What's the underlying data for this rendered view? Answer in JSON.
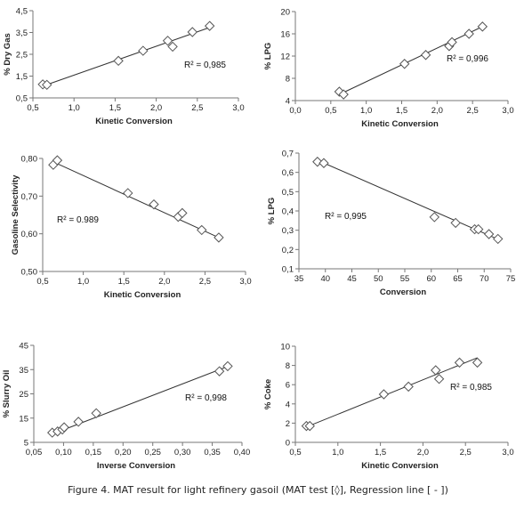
{
  "caption": "Figure 4. MAT result for light refinery gasoil (MAT test [◊], Regression line [ - ])",
  "chart_data": [
    {
      "type": "scatter",
      "xlabel": "Kinetic Conversion",
      "ylabel": "% Dry Gas",
      "xlim": [
        0.5,
        3.0
      ],
      "ylim": [
        0.5,
        4.5
      ],
      "xticks": [
        "0,5",
        "1,0",
        "1,5",
        "2,0",
        "2,5",
        "3,0"
      ],
      "yticks": [
        "0,5",
        "1,5",
        "2,5",
        "3,5",
        "4,5"
      ],
      "points": [
        [
          0.62,
          1.12
        ],
        [
          0.67,
          1.1
        ],
        [
          1.54,
          2.2
        ],
        [
          1.84,
          2.66
        ],
        [
          2.14,
          3.12
        ],
        [
          2.2,
          2.85
        ],
        [
          2.44,
          3.52
        ],
        [
          2.65,
          3.8
        ]
      ],
      "trend": [
        [
          0.62,
          1.04
        ],
        [
          2.65,
          3.73
        ]
      ],
      "r2": "R² = 0,985",
      "grid": false
    },
    {
      "type": "scatter",
      "xlabel": "Kinetic Conversion",
      "ylabel": "% LPG",
      "xlim": [
        0.0,
        3.0
      ],
      "ylim": [
        4,
        20
      ],
      "xticks": [
        "0,0",
        "0,5",
        "1,0",
        "1,5",
        "2,0",
        "2,5",
        "3,0"
      ],
      "yticks": [
        "4",
        "8",
        "12",
        "16",
        "20"
      ],
      "points": [
        [
          0.62,
          5.6
        ],
        [
          0.68,
          5.1
        ],
        [
          1.54,
          10.6
        ],
        [
          1.84,
          12.2
        ],
        [
          2.17,
          13.8
        ],
        [
          2.21,
          14.5
        ],
        [
          2.45,
          16.0
        ],
        [
          2.64,
          17.3
        ]
      ],
      "trend": [
        [
          0.62,
          5.1
        ],
        [
          2.64,
          17.3
        ]
      ],
      "r2": "R² = 0,996",
      "grid": false
    },
    {
      "type": "scatter",
      "xlabel": "Kinetic Conversion",
      "ylabel": "Gasoline Selectivity",
      "xlim": [
        0.5,
        3.0
      ],
      "ylim": [
        0.5,
        0.8
      ],
      "xticks": [
        "0,5",
        "1,0",
        "1,5",
        "2,0",
        "2,5",
        "3,0"
      ],
      "yticks": [
        "0,50",
        "0,60",
        "0,70",
        "0,80"
      ],
      "points": [
        [
          0.63,
          0.783
        ],
        [
          0.68,
          0.795
        ],
        [
          1.55,
          0.708
        ],
        [
          1.87,
          0.678
        ],
        [
          2.17,
          0.645
        ],
        [
          2.22,
          0.655
        ],
        [
          2.46,
          0.61
        ],
        [
          2.67,
          0.59
        ]
      ],
      "trend": [
        [
          0.63,
          0.791
        ],
        [
          2.67,
          0.59
        ]
      ],
      "r2": "R² = 0.989",
      "grid": false
    },
    {
      "type": "scatter",
      "xlabel": "Conversion",
      "ylabel": "% LPG",
      "xlim": [
        35,
        75
      ],
      "ylim": [
        0.1,
        0.7
      ],
      "xticks": [
        "35",
        "40",
        "45",
        "50",
        "55",
        "60",
        "65",
        "70",
        "75"
      ],
      "yticks": [
        "0,1",
        "0,2",
        "0,3",
        "0,4",
        "0,5",
        "0,6",
        "0,7"
      ],
      "points": [
        [
          38.5,
          0.655
        ],
        [
          39.7,
          0.648
        ],
        [
          60.6,
          0.368
        ],
        [
          64.6,
          0.338
        ],
        [
          68.2,
          0.305
        ],
        [
          68.9,
          0.305
        ],
        [
          70.9,
          0.28
        ],
        [
          72.6,
          0.255
        ]
      ],
      "trend": [
        [
          38.5,
          0.663
        ],
        [
          72.6,
          0.253
        ]
      ],
      "r2": "R² = 0,995",
      "grid": false
    },
    {
      "type": "scatter",
      "xlabel": "Inverse Conversion",
      "ylabel": "% Slurry Oil",
      "xlim": [
        0.05,
        0.4
      ],
      "ylim": [
        5,
        45
      ],
      "xticks": [
        "0,05",
        "0,10",
        "0,15",
        "0,20",
        "0,25",
        "0,30",
        "0,35",
        "0,40"
      ],
      "yticks": [
        "5",
        "15",
        "25",
        "35",
        "45"
      ],
      "points": [
        [
          0.081,
          9.0
        ],
        [
          0.09,
          9.5
        ],
        [
          0.098,
          10.3
        ],
        [
          0.101,
          11.2
        ],
        [
          0.125,
          13.5
        ],
        [
          0.155,
          17.0
        ],
        [
          0.362,
          34.3
        ],
        [
          0.376,
          36.4
        ]
      ],
      "trend": [
        [
          0.081,
          8.4
        ],
        [
          0.376,
          36.3
        ]
      ],
      "r2": "R² = 0,998",
      "grid": false
    },
    {
      "type": "scatter",
      "xlabel": "Kinetic Conversion",
      "ylabel": "% Coke",
      "xlim": [
        0.5,
        3.0
      ],
      "ylim": [
        0,
        10
      ],
      "xticks": [
        "0,5",
        "1,0",
        "1,5",
        "2,0",
        "2,5",
        "3,0"
      ],
      "yticks": [
        "0",
        "2",
        "4",
        "6",
        "8",
        "10"
      ],
      "points": [
        [
          0.63,
          1.7
        ],
        [
          0.67,
          1.7
        ],
        [
          1.54,
          5.0
        ],
        [
          1.83,
          5.8
        ],
        [
          2.15,
          7.5
        ],
        [
          2.19,
          6.6
        ],
        [
          2.43,
          8.3
        ],
        [
          2.64,
          8.3
        ]
      ],
      "trend": [
        [
          0.63,
          1.6
        ],
        [
          2.64,
          8.8
        ]
      ],
      "r2": "R² = 0,985",
      "grid": false
    }
  ]
}
